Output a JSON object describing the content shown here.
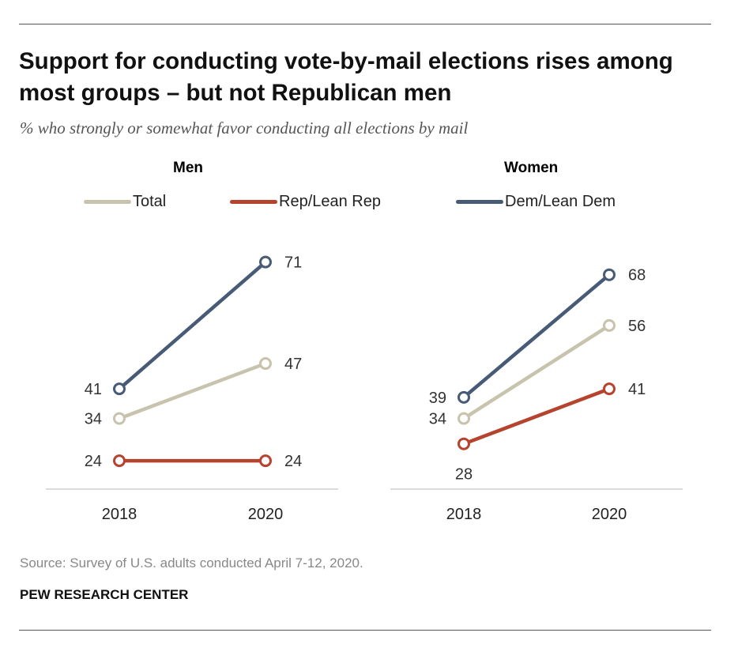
{
  "title": "Support for conducting vote-by-mail elections rises among most groups – but not Republican men",
  "subtitle": "% who strongly or somewhat favor conducting all elections by mail",
  "legend": [
    {
      "label": "Total",
      "color": "#c8c3ad"
    },
    {
      "label": "Rep/Lean Rep",
      "color": "#b5432e"
    },
    {
      "label": "Dem/Lean Dem",
      "color": "#475b77"
    }
  ],
  "source": "Source: Survey of U.S. adults conducted April 7-12, 2020.",
  "brand": "PEW RESEARCH CENTER",
  "chart_data": [
    {
      "type": "line",
      "title": "Men",
      "x": [
        "2018",
        "2020"
      ],
      "series": [
        {
          "name": "Total",
          "values": [
            34,
            47
          ],
          "color": "#c8c3ad"
        },
        {
          "name": "Rep/Lean Rep",
          "values": [
            24,
            24
          ],
          "color": "#b5432e"
        },
        {
          "name": "Dem/Lean Dem",
          "values": [
            41,
            71
          ],
          "color": "#475b77"
        }
      ]
    },
    {
      "type": "line",
      "title": "Women",
      "x": [
        "2018",
        "2020"
      ],
      "series": [
        {
          "name": "Total",
          "values": [
            34,
            56
          ],
          "color": "#c8c3ad"
        },
        {
          "name": "Rep/Lean Rep",
          "values": [
            28,
            41
          ],
          "color": "#b5432e"
        },
        {
          "name": "Dem/Lean Dem",
          "values": [
            39,
            68
          ],
          "color": "#475b77"
        }
      ]
    }
  ]
}
